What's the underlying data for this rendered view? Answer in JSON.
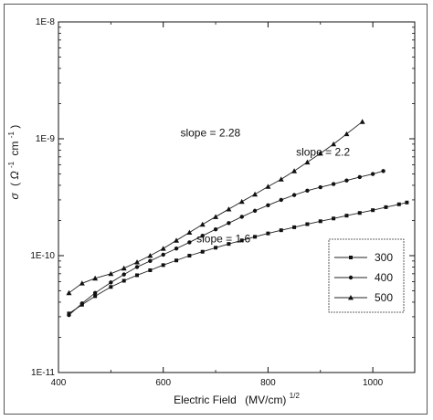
{
  "chart_data": {
    "type": "line",
    "title": "",
    "xlabel": "Electric Field",
    "xlabel_unit": "(MV/cm)",
    "xlabel_exp": "1/2",
    "ylabel_symbol": "σ",
    "ylabel_paren_open": "(",
    "ylabel_ohm": "Ω",
    "ylabel_exp": "-1",
    "ylabel_cm": "cm",
    "ylabel_exp2": "-1",
    "ylabel_paren_close": ")",
    "xlim": [
      400,
      1080
    ],
    "ylim": [
      1e-11,
      1e-08
    ],
    "yscale": "log",
    "x_ticks": [
      400,
      600,
      800,
      1000
    ],
    "x_tick_labels": [
      "400",
      "600",
      "800",
      "1000"
    ],
    "y_ticks": [
      1e-11,
      1e-10,
      1e-09,
      1e-08
    ],
    "y_tick_labels": [
      "1E-11",
      "1E-10",
      "1E-9",
      "1E-8"
    ],
    "legend_position": "right",
    "grid": false,
    "series": [
      {
        "name": "300",
        "marker": "square",
        "x": [
          420,
          445,
          470,
          500,
          525,
          550,
          575,
          600,
          625,
          650,
          675,
          700,
          725,
          750,
          775,
          800,
          825,
          850,
          875,
          900,
          925,
          950,
          975,
          1000,
          1025,
          1050,
          1065
        ],
        "y": [
          3.2e-11,
          3.8e-11,
          4.5e-11,
          5.4e-11,
          6.1e-11,
          6.8e-11,
          7.5e-11,
          8.3e-11,
          9.1e-11,
          1e-10,
          1.08e-10,
          1.17e-10,
          1.26e-10,
          1.35e-10,
          1.45e-10,
          1.55e-10,
          1.65e-10,
          1.75e-10,
          1.86e-10,
          1.97e-10,
          2.08e-10,
          2.2e-10,
          2.32e-10,
          2.45e-10,
          2.6e-10,
          2.75e-10,
          2.85e-10
        ]
      },
      {
        "name": "400",
        "marker": "circle",
        "x": [
          420,
          445,
          470,
          500,
          525,
          550,
          575,
          600,
          625,
          650,
          675,
          700,
          725,
          750,
          775,
          800,
          825,
          850,
          875,
          900,
          925,
          950,
          975,
          1000,
          1020
        ],
        "y": [
          3.1e-11,
          3.9e-11,
          4.8e-11,
          5.9e-11,
          6.9e-11,
          8e-11,
          9e-11,
          1.02e-10,
          1.15e-10,
          1.3e-10,
          1.48e-10,
          1.68e-10,
          1.9e-10,
          2.15e-10,
          2.42e-10,
          2.7e-10,
          3e-10,
          3.3e-10,
          3.6e-10,
          3.85e-10,
          4.1e-10,
          4.4e-10,
          4.7e-10,
          5e-10,
          5.3e-10
        ]
      },
      {
        "name": "500",
        "marker": "triangle",
        "x": [
          420,
          445,
          470,
          500,
          525,
          550,
          575,
          600,
          625,
          650,
          675,
          700,
          725,
          750,
          775,
          800,
          825,
          850,
          875,
          900,
          925,
          950,
          980
        ],
        "y": [
          4.8e-11,
          5.8e-11,
          6.4e-11,
          7e-11,
          7.8e-11,
          8.8e-11,
          1e-10,
          1.15e-10,
          1.35e-10,
          1.58e-10,
          1.85e-10,
          2.15e-10,
          2.5e-10,
          2.9e-10,
          3.35e-10,
          3.9e-10,
          4.5e-10,
          5.3e-10,
          6.3e-10,
          7.5e-10,
          9e-10,
          1.1e-09,
          1.4e-09
        ]
      }
    ],
    "annotations": [
      {
        "text": "slope = 2.28",
        "x": 690,
        "y": 1.05e-09
      },
      {
        "text": "slope = 2.2",
        "x": 905,
        "y": 7.2e-10
      },
      {
        "text": "slope = 1.6",
        "x": 715,
        "y": 1.3e-10
      }
    ]
  }
}
